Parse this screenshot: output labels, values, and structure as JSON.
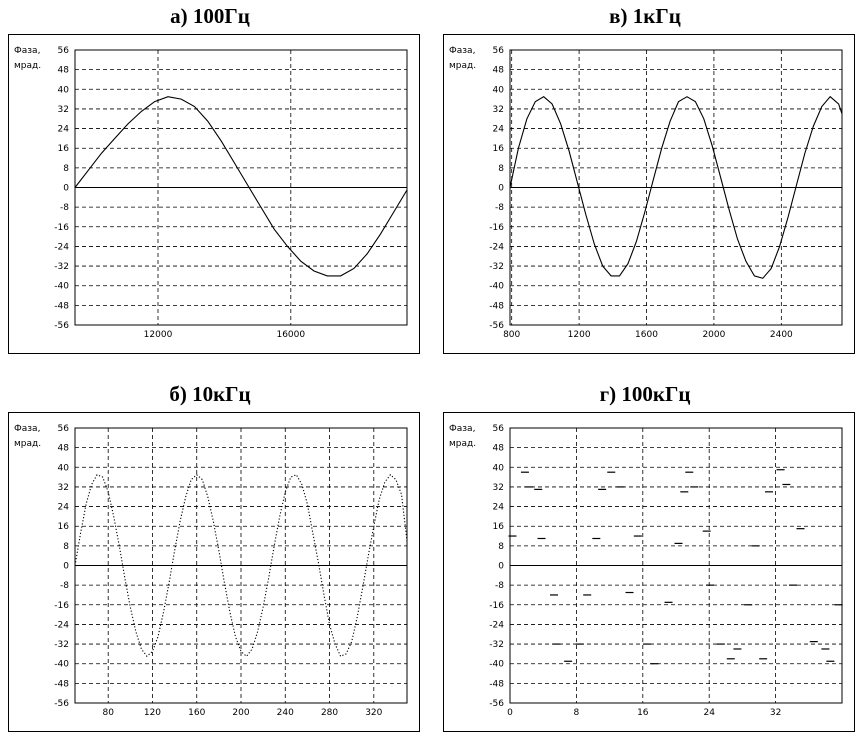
{
  "chart_data": [
    {
      "type": "line",
      "title": "а) 100Гц",
      "ylabel": [
        "Фаза,",
        "мрад."
      ],
      "xlabel": "",
      "xlim": [
        9500,
        19500
      ],
      "ylim": [
        -56,
        56
      ],
      "xticks": [
        12000,
        16000
      ],
      "yticks": [
        56,
        48,
        40,
        32,
        24,
        16,
        8,
        0,
        -8,
        -16,
        -24,
        -32,
        -40,
        -48,
        -56
      ],
      "grid": true,
      "line_style": "solid",
      "series": [
        {
          "x": [
            9500,
            9900,
            10300,
            10700,
            11100,
            11500,
            11900,
            12300,
            12700,
            13100,
            13500,
            13900,
            14300,
            14700,
            15100,
            15500,
            15900,
            16300,
            16700,
            17100,
            17500,
            17900,
            18300,
            18700,
            19100,
            19500
          ],
          "values": [
            0,
            7,
            14,
            20,
            26,
            31,
            35,
            37,
            36,
            33,
            27,
            19,
            10,
            1,
            -8,
            -17,
            -24,
            -30,
            -34,
            -36,
            -36,
            -33,
            -27,
            -19,
            -10,
            -1
          ]
        }
      ]
    },
    {
      "type": "line",
      "title": "в) 1кГц",
      "ylabel": [
        "Фаза,",
        "мрад."
      ],
      "xlabel": "",
      "xlim": [
        790,
        2760
      ],
      "ylim": [
        -56,
        56
      ],
      "xticks": [
        800,
        1200,
        1600,
        2000,
        2400
      ],
      "yticks": [
        56,
        48,
        40,
        32,
        24,
        16,
        8,
        0,
        -8,
        -16,
        -24,
        -32,
        -40,
        -48,
        -56
      ],
      "grid": true,
      "line_style": "solid",
      "series": [
        {
          "x": [
            790,
            840,
            890,
            940,
            990,
            1040,
            1090,
            1140,
            1190,
            1240,
            1290,
            1340,
            1390,
            1440,
            1490,
            1540,
            1590,
            1640,
            1690,
            1740,
            1790,
            1840,
            1890,
            1940,
            1990,
            2040,
            2090,
            2140,
            2190,
            2240,
            2290,
            2340,
            2390,
            2440,
            2490,
            2540,
            2590,
            2640,
            2690,
            2740,
            2760
          ],
          "values": [
            0,
            16,
            28,
            35,
            37,
            34,
            26,
            15,
            2,
            -11,
            -23,
            -32,
            -36,
            -36,
            -31,
            -22,
            -10,
            3,
            16,
            27,
            35,
            37,
            35,
            28,
            17,
            4,
            -9,
            -21,
            -30,
            -36,
            -37,
            -33,
            -24,
            -12,
            1,
            14,
            25,
            33,
            37,
            34,
            30
          ]
        }
      ]
    },
    {
      "type": "line",
      "title": "б) 10кГц",
      "ylabel": [
        "Фаза,",
        "мрад."
      ],
      "xlabel": "",
      "xlim": [
        50,
        350
      ],
      "ylim": [
        -56,
        56
      ],
      "xticks": [
        80,
        120,
        160,
        200,
        240,
        280,
        320
      ],
      "yticks": [
        56,
        48,
        40,
        32,
        24,
        16,
        8,
        0,
        -8,
        -16,
        -24,
        -32,
        -40,
        -48,
        -56
      ],
      "grid": true,
      "line_style": "dotted",
      "series": [
        {
          "x": [
            50,
            55,
            60,
            65,
            70,
            75,
            80,
            85,
            90,
            95,
            100,
            105,
            110,
            115,
            120,
            125,
            130,
            135,
            140,
            145,
            150,
            155,
            160,
            165,
            170,
            175,
            180,
            185,
            190,
            195,
            200,
            205,
            210,
            215,
            220,
            225,
            230,
            235,
            240,
            245,
            250,
            255,
            260,
            265,
            270,
            275,
            280,
            285,
            290,
            295,
            300,
            305,
            310,
            315,
            320,
            325,
            330,
            335,
            340,
            345,
            350
          ],
          "values": [
            0,
            13,
            25,
            33,
            37,
            36,
            30,
            20,
            8,
            -5,
            -17,
            -27,
            -34,
            -37,
            -35,
            -29,
            -19,
            -7,
            6,
            18,
            28,
            35,
            37,
            35,
            28,
            18,
            6,
            -7,
            -19,
            -29,
            -35,
            -37,
            -34,
            -27,
            -17,
            -5,
            8,
            20,
            30,
            36,
            37,
            33,
            25,
            13,
            1,
            -12,
            -24,
            -32,
            -37,
            -36,
            -31,
            -21,
            -9,
            4,
            16,
            27,
            34,
            37,
            35,
            29,
            10
          ]
        }
      ]
    },
    {
      "type": "scatter",
      "title": "г) 100кГц",
      "ylabel": [
        "Фаза,",
        "мрад."
      ],
      "xlabel": "",
      "xlim": [
        0,
        40
      ],
      "ylim": [
        -56,
        56
      ],
      "xticks": [
        0,
        8,
        16,
        24,
        32
      ],
      "yticks": [
        56,
        48,
        40,
        32,
        24,
        16,
        8,
        0,
        -8,
        -16,
        -24,
        -32,
        -40,
        -48,
        -56
      ],
      "grid": true,
      "marker": "dash",
      "series": [
        {
          "x": [
            0.3,
            1.8,
            2.3,
            3.4,
            3.8,
            5.3,
            5.6,
            7,
            8.4,
            9.3,
            10.4,
            11.1,
            12.2,
            13.3,
            14.4,
            15.4,
            16.5,
            17.4,
            19.1,
            20.3,
            21,
            21.6,
            22.2,
            23.7,
            24.1,
            25.4,
            26.6,
            27.4,
            28.7,
            29.6,
            30.5,
            31.2,
            32.6,
            33.3,
            34.1,
            35,
            36.6,
            38,
            38.6,
            39.6
          ],
          "values": [
            12,
            38,
            32,
            31,
            11,
            -12,
            -32,
            -39,
            -32,
            -12,
            11,
            31,
            38,
            32,
            -11,
            12,
            -32,
            -40,
            -15,
            9,
            30,
            38,
            32,
            14,
            -8,
            -32,
            -38,
            -34,
            -16,
            8,
            -38,
            30,
            39,
            33,
            -8,
            15,
            -31,
            -34,
            -39,
            -16
          ]
        }
      ]
    }
  ]
}
